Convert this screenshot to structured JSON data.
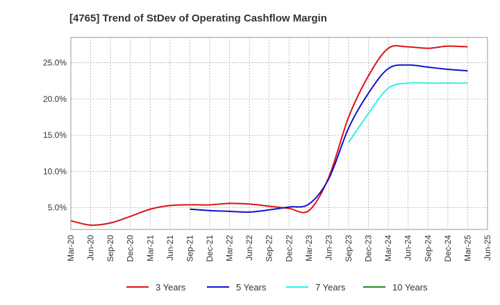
{
  "chart_data": {
    "type": "line",
    "title": "[4765]  Trend of StDev of Operating Cashflow Margin",
    "xlabel": "",
    "ylabel": "",
    "x": [
      "Mar-20",
      "Jun-20",
      "Sep-20",
      "Dec-20",
      "Mar-21",
      "Jun-21",
      "Sep-21",
      "Dec-21",
      "Mar-22",
      "Jun-22",
      "Sep-22",
      "Dec-22",
      "Mar-23",
      "Jun-23",
      "Sep-23",
      "Dec-23",
      "Mar-24",
      "Jun-24",
      "Sep-24",
      "Dec-24",
      "Mar-25",
      "Jun-25"
    ],
    "ylim": [
      2.0,
      28.5
    ],
    "yticks": [
      5.0,
      10.0,
      15.0,
      20.0,
      25.0
    ],
    "ytick_labels": [
      "5.0%",
      "10.0%",
      "15.0%",
      "20.0%",
      "25.0%"
    ],
    "grid": true,
    "legend_position": "bottom",
    "series": [
      {
        "name": "3 Years",
        "color": "#dd1111",
        "values": [
          3.2,
          2.6,
          2.9,
          3.8,
          4.8,
          5.3,
          5.4,
          5.4,
          5.6,
          5.5,
          5.2,
          4.9,
          4.6,
          9.2,
          17.5,
          23.2,
          27.0,
          27.2,
          27.0,
          27.3,
          27.2,
          null
        ]
      },
      {
        "name": "5 Years",
        "color": "#1111cc",
        "values": [
          null,
          null,
          null,
          null,
          null,
          null,
          4.8,
          4.6,
          4.5,
          4.4,
          4.7,
          5.1,
          5.5,
          9.0,
          16.0,
          20.8,
          24.2,
          24.7,
          24.4,
          24.1,
          23.9,
          null
        ]
      },
      {
        "name": "7 Years",
        "color": "#33eeee",
        "values": [
          null,
          null,
          null,
          null,
          null,
          null,
          null,
          null,
          null,
          null,
          null,
          null,
          null,
          null,
          14.0,
          18.0,
          21.5,
          22.2,
          22.2,
          22.2,
          22.2,
          null
        ]
      },
      {
        "name": "10 Years",
        "color": "#228b22",
        "values": [
          null,
          null,
          null,
          null,
          null,
          null,
          null,
          null,
          null,
          null,
          null,
          null,
          null,
          null,
          null,
          null,
          null,
          null,
          null,
          null,
          null,
          null
        ]
      }
    ]
  }
}
